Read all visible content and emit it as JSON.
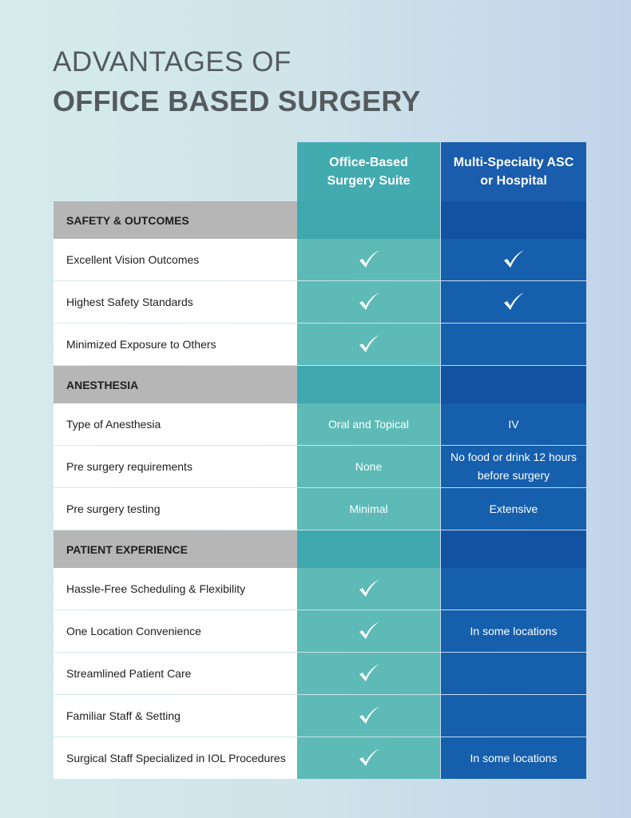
{
  "title": {
    "line1": "ADVANTAGES OF",
    "line2": "OFFICE BASED SURGERY"
  },
  "table": {
    "columns": [
      "Office-Based Surgery Suite",
      "Multi-Specialty ASC or Hospital"
    ],
    "sections": [
      {
        "title": "SAFETY & OUTCOMES",
        "rows": [
          {
            "label": "Excellent Vision Outcomes",
            "cells": [
              true,
              true
            ]
          },
          {
            "label": "Highest Safety Standards",
            "cells": [
              true,
              true
            ]
          },
          {
            "label": "Minimized Exposure to Others",
            "cells": [
              true,
              null
            ]
          }
        ]
      },
      {
        "title": "ANESTHESIA",
        "rows": [
          {
            "label": "Type of Anesthesia",
            "cells": [
              "Oral and Topical",
              "IV"
            ]
          },
          {
            "label": "Pre surgery requirements",
            "cells": [
              "None",
              "No food or drink 12 hours before surgery"
            ]
          },
          {
            "label": "Pre surgery testing",
            "cells": [
              "Minimal",
              "Extensive"
            ]
          }
        ]
      },
      {
        "title": "PATIENT EXPERIENCE",
        "rows": [
          {
            "label": "Hassle-Free Scheduling & Flexibility",
            "cells": [
              true,
              null
            ]
          },
          {
            "label": "One Location Convenience",
            "cells": [
              true,
              "In some locations"
            ]
          },
          {
            "label": "Streamlined Patient Care",
            "cells": [
              true,
              null
            ]
          },
          {
            "label": "Familiar Staff & Setting",
            "cells": [
              true,
              null
            ]
          },
          {
            "label": "Surgical Staff Specialized in IOL Procedures",
            "cells": [
              true,
              "In some locations"
            ]
          }
        ]
      }
    ]
  }
}
